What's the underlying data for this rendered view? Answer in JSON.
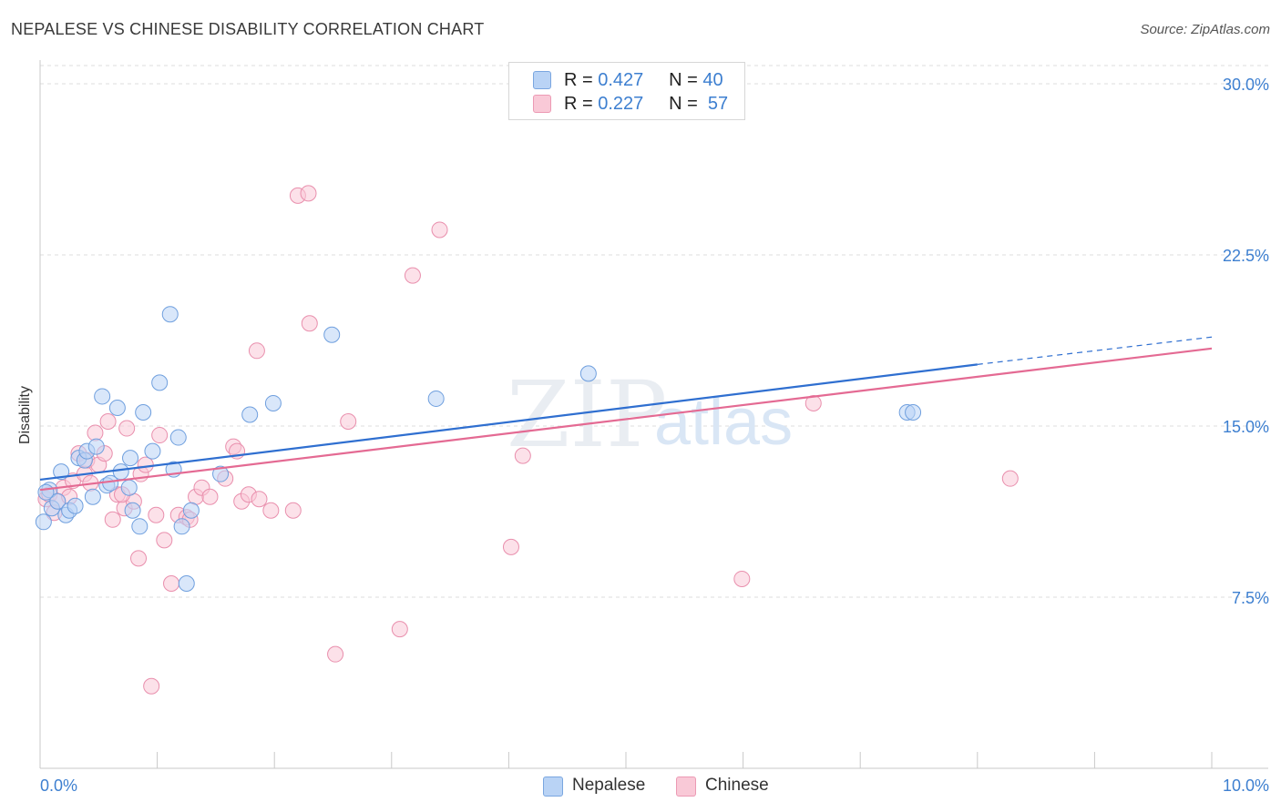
{
  "title": "NEPALESE VS CHINESE DISABILITY CORRELATION CHART",
  "source": "Source: ZipAtlas.com",
  "legend": {
    "r_label": "R =",
    "n_label": "N =",
    "nepalese": {
      "r": "0.427",
      "n": "40"
    },
    "chinese": {
      "r": "0.227",
      "n": "57"
    }
  },
  "bottom_legend": {
    "nepalese": "Nepalese",
    "chinese": "Chinese"
  },
  "watermark": {
    "zip": "ZIP",
    "atlas": "atlas"
  },
  "colors": {
    "nepalese_fill": "#b9d3f5",
    "nepalese_stroke": "#6f9fde",
    "nepalese_line": "#2f6fd0",
    "chinese_fill": "#f9c9d7",
    "chinese_stroke": "#e98fad",
    "chinese_line": "#e46a93",
    "tick_text": "#3d7fd0",
    "grid": "#dddddd"
  },
  "chart_data": {
    "type": "scatter",
    "ylabel": "Disability",
    "xlabel": "",
    "xlim": [
      0,
      10
    ],
    "ylim": [
      0,
      30.8
    ],
    "x_tick_labels": [
      {
        "v": 0,
        "label": "0.0%"
      },
      {
        "v": 10,
        "label": "10.0%"
      }
    ],
    "y_tick_labels": [
      {
        "v": 7.5,
        "label": "7.5%"
      },
      {
        "v": 15,
        "label": "15.0%"
      },
      {
        "v": 22.5,
        "label": "22.5%"
      },
      {
        "v": 30,
        "label": "30.0%"
      }
    ],
    "grid": true,
    "legend_position": "top-center",
    "series": [
      {
        "name": "Nepalese",
        "trend": {
          "x0": 0,
          "y0": 12.65,
          "x1": 8.0,
          "y1": 17.7,
          "dash_to_x": 10.0,
          "dash_to_y": 18.9
        },
        "points": [
          [
            0.03,
            10.8
          ],
          [
            0.08,
            12.2
          ],
          [
            0.1,
            11.4
          ],
          [
            0.15,
            11.7
          ],
          [
            0.18,
            13.0
          ],
          [
            0.22,
            11.1
          ],
          [
            0.25,
            11.3
          ],
          [
            0.3,
            11.5
          ],
          [
            0.33,
            13.6
          ],
          [
            0.38,
            13.5
          ],
          [
            0.4,
            13.9
          ],
          [
            0.45,
            11.9
          ],
          [
            0.48,
            14.1
          ],
          [
            0.53,
            16.3
          ],
          [
            0.57,
            12.4
          ],
          [
            0.6,
            12.5
          ],
          [
            0.66,
            15.8
          ],
          [
            0.69,
            13.0
          ],
          [
            0.76,
            12.3
          ],
          [
            0.77,
            13.6
          ],
          [
            0.79,
            11.3
          ],
          [
            0.85,
            10.6
          ],
          [
            0.88,
            15.6
          ],
          [
            0.96,
            13.9
          ],
          [
            1.02,
            16.9
          ],
          [
            1.11,
            19.9
          ],
          [
            1.14,
            13.1
          ],
          [
            1.18,
            14.5
          ],
          [
            1.21,
            10.6
          ],
          [
            1.25,
            8.1
          ],
          [
            1.29,
            11.3
          ],
          [
            1.54,
            12.9
          ],
          [
            1.79,
            15.5
          ],
          [
            1.99,
            16.0
          ],
          [
            2.49,
            19.0
          ],
          [
            3.38,
            16.2
          ],
          [
            4.68,
            17.3
          ],
          [
            7.4,
            15.6
          ],
          [
            7.45,
            15.6
          ],
          [
            0.05,
            12.1
          ]
        ]
      },
      {
        "name": "Chinese",
        "trend": {
          "x0": 0,
          "y0": 12.2,
          "x1": 10.0,
          "y1": 18.4
        },
        "points": [
          [
            0.05,
            11.8
          ],
          [
            0.08,
            12.0
          ],
          [
            0.12,
            11.2
          ],
          [
            0.15,
            11.7
          ],
          [
            0.2,
            12.3
          ],
          [
            0.25,
            11.9
          ],
          [
            0.28,
            12.6
          ],
          [
            0.33,
            13.8
          ],
          [
            0.38,
            12.9
          ],
          [
            0.4,
            13.5
          ],
          [
            0.43,
            12.5
          ],
          [
            0.47,
            14.7
          ],
          [
            0.5,
            13.3
          ],
          [
            0.55,
            13.8
          ],
          [
            0.58,
            15.2
          ],
          [
            0.62,
            10.9
          ],
          [
            0.66,
            12.0
          ],
          [
            0.72,
            11.4
          ],
          [
            0.74,
            14.9
          ],
          [
            0.8,
            11.7
          ],
          [
            0.84,
            9.2
          ],
          [
            0.86,
            12.9
          ],
          [
            0.9,
            13.3
          ],
          [
            0.95,
            3.6
          ],
          [
            0.99,
            11.1
          ],
          [
            1.02,
            14.6
          ],
          [
            1.06,
            10.0
          ],
          [
            1.12,
            8.1
          ],
          [
            1.18,
            11.1
          ],
          [
            1.25,
            11.0
          ],
          [
            1.28,
            10.9
          ],
          [
            1.33,
            11.9
          ],
          [
            1.38,
            12.3
          ],
          [
            1.45,
            11.9
          ],
          [
            1.58,
            12.7
          ],
          [
            1.65,
            14.1
          ],
          [
            1.68,
            13.9
          ],
          [
            1.72,
            11.7
          ],
          [
            1.78,
            12.0
          ],
          [
            1.85,
            18.3
          ],
          [
            1.87,
            11.8
          ],
          [
            1.97,
            11.3
          ],
          [
            2.16,
            11.3
          ],
          [
            2.2,
            25.1
          ],
          [
            2.29,
            25.2
          ],
          [
            2.3,
            19.5
          ],
          [
            2.52,
            5.0
          ],
          [
            2.63,
            15.2
          ],
          [
            3.07,
            6.1
          ],
          [
            3.18,
            21.6
          ],
          [
            3.41,
            23.6
          ],
          [
            4.02,
            9.7
          ],
          [
            4.12,
            13.7
          ],
          [
            5.99,
            8.3
          ],
          [
            6.6,
            16.0
          ],
          [
            8.28,
            12.7
          ],
          [
            0.7,
            12.0
          ]
        ]
      }
    ]
  }
}
